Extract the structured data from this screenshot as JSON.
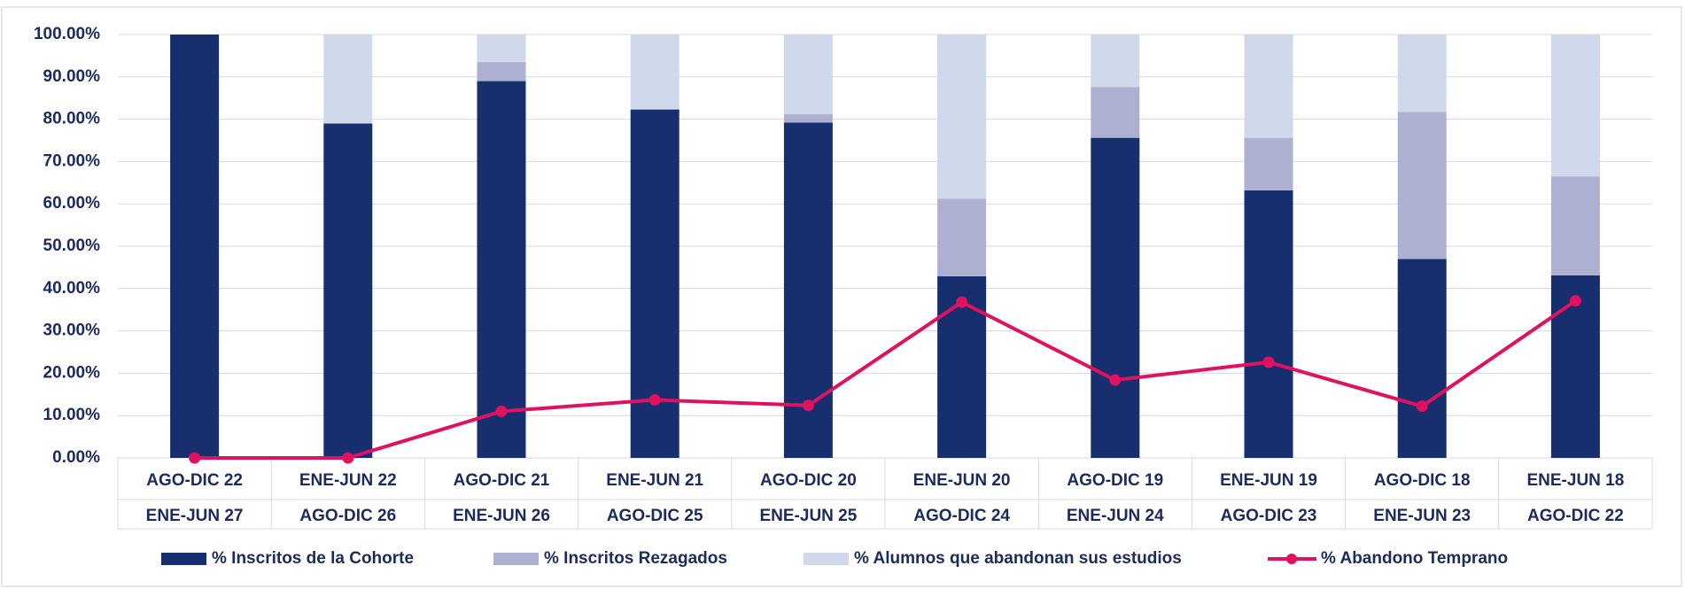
{
  "chart_data": {
    "type": "bar",
    "stacked": true,
    "categories": [
      [
        "AGO-DIC 22",
        "ENE-JUN 27"
      ],
      [
        "ENE-JUN 22",
        "AGO-DIC 26"
      ],
      [
        "AGO-DIC 21",
        "ENE-JUN 26"
      ],
      [
        "ENE-JUN 21",
        "AGO-DIC 25"
      ],
      [
        "AGO-DIC 20",
        "ENE-JUN 25"
      ],
      [
        "ENE-JUN 20",
        "AGO-DIC 24"
      ],
      [
        "AGO-DIC 19",
        "ENE-JUN 24"
      ],
      [
        "ENE-JUN 19",
        "AGO-DIC 23"
      ],
      [
        "AGO-DIC 18",
        "ENE-JUN 23"
      ],
      [
        "ENE-JUN 18",
        "AGO-DIC 22"
      ]
    ],
    "series": [
      {
        "name": "% Inscritos de la Cohorte",
        "type": "bar",
        "color": "#172f6e",
        "values": [
          100,
          79,
          89,
          82.3,
          79.2,
          42.9,
          75.6,
          63.2,
          47,
          43.1
        ]
      },
      {
        "name": "% Inscritos Rezagados",
        "type": "bar",
        "color": "#aeb0d2",
        "values": [
          0,
          0,
          4.5,
          0,
          2,
          18.3,
          12,
          12.4,
          34.7,
          23.4
        ]
      },
      {
        "name": "% Alumnos que abandonan sus estudios",
        "type": "bar",
        "color": "#d0d8ec",
        "values": [
          0,
          21,
          6.5,
          17.7,
          18.8,
          38.8,
          12.4,
          24.4,
          18.3,
          33.5
        ]
      },
      {
        "name": "% Abandono Temprano",
        "type": "line",
        "color": "#e0115f",
        "values": [
          0,
          0,
          11,
          13.7,
          12.4,
          36.8,
          18.4,
          22.6,
          12.2,
          37.1
        ]
      }
    ],
    "ylim": [
      0,
      100
    ],
    "yticks": [
      {
        "value": 0,
        "label": "0.00%"
      },
      {
        "value": 10,
        "label": "10.00%"
      },
      {
        "value": 20,
        "label": "20.00%"
      },
      {
        "value": 30,
        "label": "30.00%"
      },
      {
        "value": 40,
        "label": "40.00%"
      },
      {
        "value": 50,
        "label": "50.00%"
      },
      {
        "value": 60,
        "label": "60.00%"
      },
      {
        "value": 70,
        "label": "70.00%"
      },
      {
        "value": 80,
        "label": "80.00%"
      },
      {
        "value": 90,
        "label": "90.00%"
      },
      {
        "value": 100,
        "label": "100.00%"
      }
    ],
    "grid": true,
    "legend": "bottom"
  }
}
